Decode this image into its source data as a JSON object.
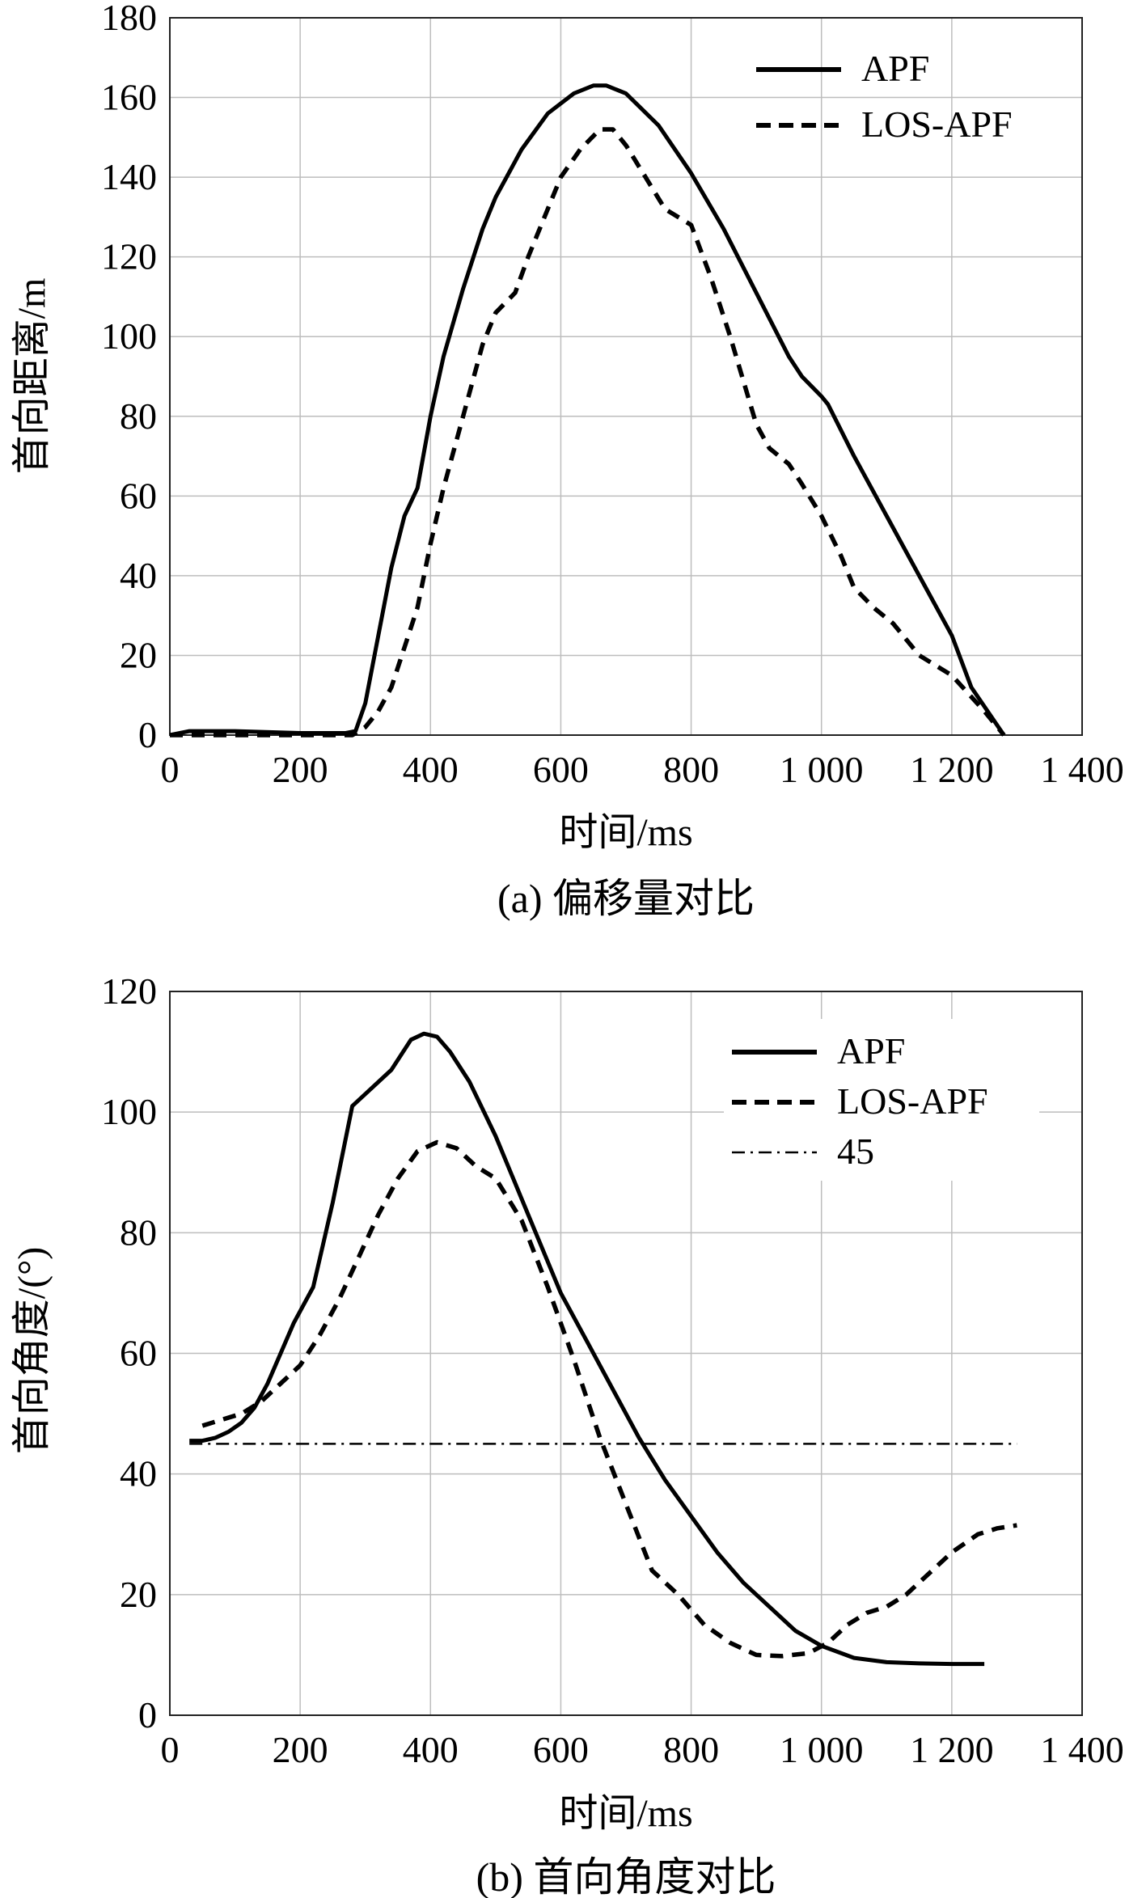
{
  "chart_data": [
    {
      "type": "line",
      "title": "",
      "caption": "(a) 偏移量对比",
      "xlabel": "时间/ms",
      "ylabel": "首向距离/m",
      "xlim": [
        0,
        1400
      ],
      "ylim": [
        0,
        180
      ],
      "xticks": [
        0,
        200,
        400,
        600,
        800,
        1000,
        1200,
        1400
      ],
      "xtick_labels": [
        "0",
        "200",
        "400",
        "600",
        "800",
        "1 000",
        "1 200",
        "1 400"
      ],
      "yticks": [
        0,
        20,
        40,
        60,
        80,
        100,
        120,
        140,
        160,
        180
      ],
      "ytick_labels": [
        "0",
        "20",
        "40",
        "60",
        "80",
        "100",
        "120",
        "140",
        "160",
        "180"
      ],
      "grid": true,
      "legend_position": "top-right",
      "series": [
        {
          "name": "APF",
          "style": "solid",
          "x": [
            0,
            30,
            100,
            200,
            270,
            285,
            300,
            320,
            340,
            360,
            380,
            400,
            420,
            450,
            480,
            500,
            540,
            580,
            620,
            650,
            670,
            700,
            750,
            800,
            850,
            900,
            950,
            970,
            1000,
            1010,
            1050,
            1100,
            1150,
            1200,
            1230,
            1280
          ],
          "values": [
            0,
            1,
            1,
            0.5,
            0.5,
            1,
            8,
            25,
            42,
            55,
            62,
            80,
            95,
            112,
            127,
            135,
            147,
            156,
            161,
            163,
            163,
            161,
            153,
            141,
            127,
            111,
            95,
            90,
            85,
            83,
            70,
            55,
            40,
            25,
            12,
            0
          ]
        },
        {
          "name": "LOS-APF",
          "style": "dashed",
          "x": [
            0,
            100,
            200,
            280,
            300,
            320,
            340,
            360,
            380,
            400,
            420,
            450,
            480,
            500,
            530,
            550,
            580,
            600,
            630,
            660,
            680,
            700,
            730,
            760,
            800,
            830,
            860,
            900,
            920,
            950,
            970,
            1000,
            1030,
            1050,
            1080,
            1110,
            1150,
            1200,
            1250,
            1280
          ],
          "values": [
            0,
            0,
            0,
            0,
            2,
            6,
            12,
            22,
            32,
            48,
            62,
            80,
            98,
            106,
            111,
            120,
            132,
            140,
            147,
            152,
            152,
            148,
            140,
            132,
            128,
            115,
            100,
            78,
            72,
            68,
            63,
            55,
            45,
            37,
            32,
            28,
            20,
            15,
            6,
            0
          ]
        }
      ]
    },
    {
      "type": "line",
      "title": "",
      "caption": "(b) 首向角度对比",
      "xlabel": "时间/ms",
      "ylabel": "首向角度/(°)",
      "xlim": [
        0,
        1400
      ],
      "ylim": [
        0,
        120
      ],
      "xticks": [
        0,
        200,
        400,
        600,
        800,
        1000,
        1200,
        1400
      ],
      "xtick_labels": [
        "0",
        "200",
        "400",
        "600",
        "800",
        "1 000",
        "1 200",
        "1 400"
      ],
      "yticks": [
        0,
        20,
        40,
        60,
        80,
        100,
        120
      ],
      "ytick_labels": [
        "0",
        "20",
        "40",
        "60",
        "80",
        "100",
        "120"
      ],
      "grid": true,
      "legend_position": "top-right",
      "series": [
        {
          "name": "APF",
          "style": "solid",
          "x": [
            30,
            50,
            70,
            90,
            110,
            130,
            150,
            170,
            190,
            220,
            250,
            280,
            300,
            340,
            370,
            390,
            410,
            430,
            460,
            500,
            550,
            600,
            640,
            680,
            720,
            760,
            800,
            840,
            880,
            920,
            960,
            1000,
            1050,
            1100,
            1150,
            1200,
            1250
          ],
          "values": [
            45.5,
            45.5,
            46,
            47,
            48.5,
            51,
            55,
            60,
            65,
            71,
            85,
            101,
            103,
            107,
            112,
            113,
            112.5,
            110,
            105,
            96,
            83,
            70,
            62,
            54,
            46,
            39,
            33,
            27,
            22,
            18,
            14,
            11.5,
            9.5,
            8.8,
            8.6,
            8.5,
            8.5
          ]
        },
        {
          "name": "LOS-APF",
          "style": "dashed",
          "x": [
            50,
            80,
            110,
            140,
            170,
            200,
            230,
            260,
            290,
            320,
            350,
            380,
            410,
            440,
            470,
            500,
            540,
            580,
            620,
            660,
            700,
            740,
            780,
            820,
            860,
            900,
            940,
            980,
            1010,
            1040,
            1070,
            1100,
            1130,
            1160,
            1200,
            1240,
            1270,
            1300
          ],
          "values": [
            48,
            49,
            50,
            52,
            55,
            58,
            63,
            69,
            76,
            83,
            89,
            93.5,
            95,
            94,
            91,
            89,
            82,
            71,
            59,
            46,
            35,
            24,
            20,
            15,
            12,
            10,
            9.8,
            10.3,
            12,
            15,
            17,
            18,
            20,
            23,
            27,
            30,
            31,
            31.5
          ]
        },
        {
          "name": "45",
          "style": "dashdot",
          "x": [
            30,
            1300
          ],
          "values": [
            45,
            45
          ]
        }
      ]
    }
  ]
}
